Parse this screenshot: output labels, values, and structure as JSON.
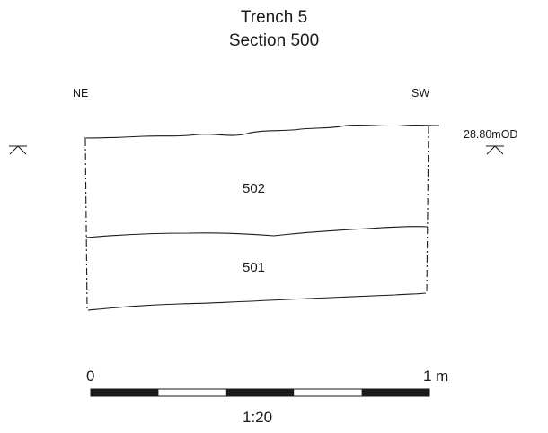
{
  "title": {
    "line1": "Trench 5",
    "line2": "Section 500"
  },
  "orientation": {
    "left": "NE",
    "right": "SW"
  },
  "datum": {
    "label": "28.80mOD"
  },
  "layers": [
    {
      "label": "502"
    },
    {
      "label": "501"
    }
  ],
  "scale_bar": {
    "start_label": "0",
    "end_label": "1 m",
    "ratio": "1:20",
    "segments": 5
  },
  "colors": {
    "ink": "#1a1a1a",
    "background": "#ffffff"
  }
}
